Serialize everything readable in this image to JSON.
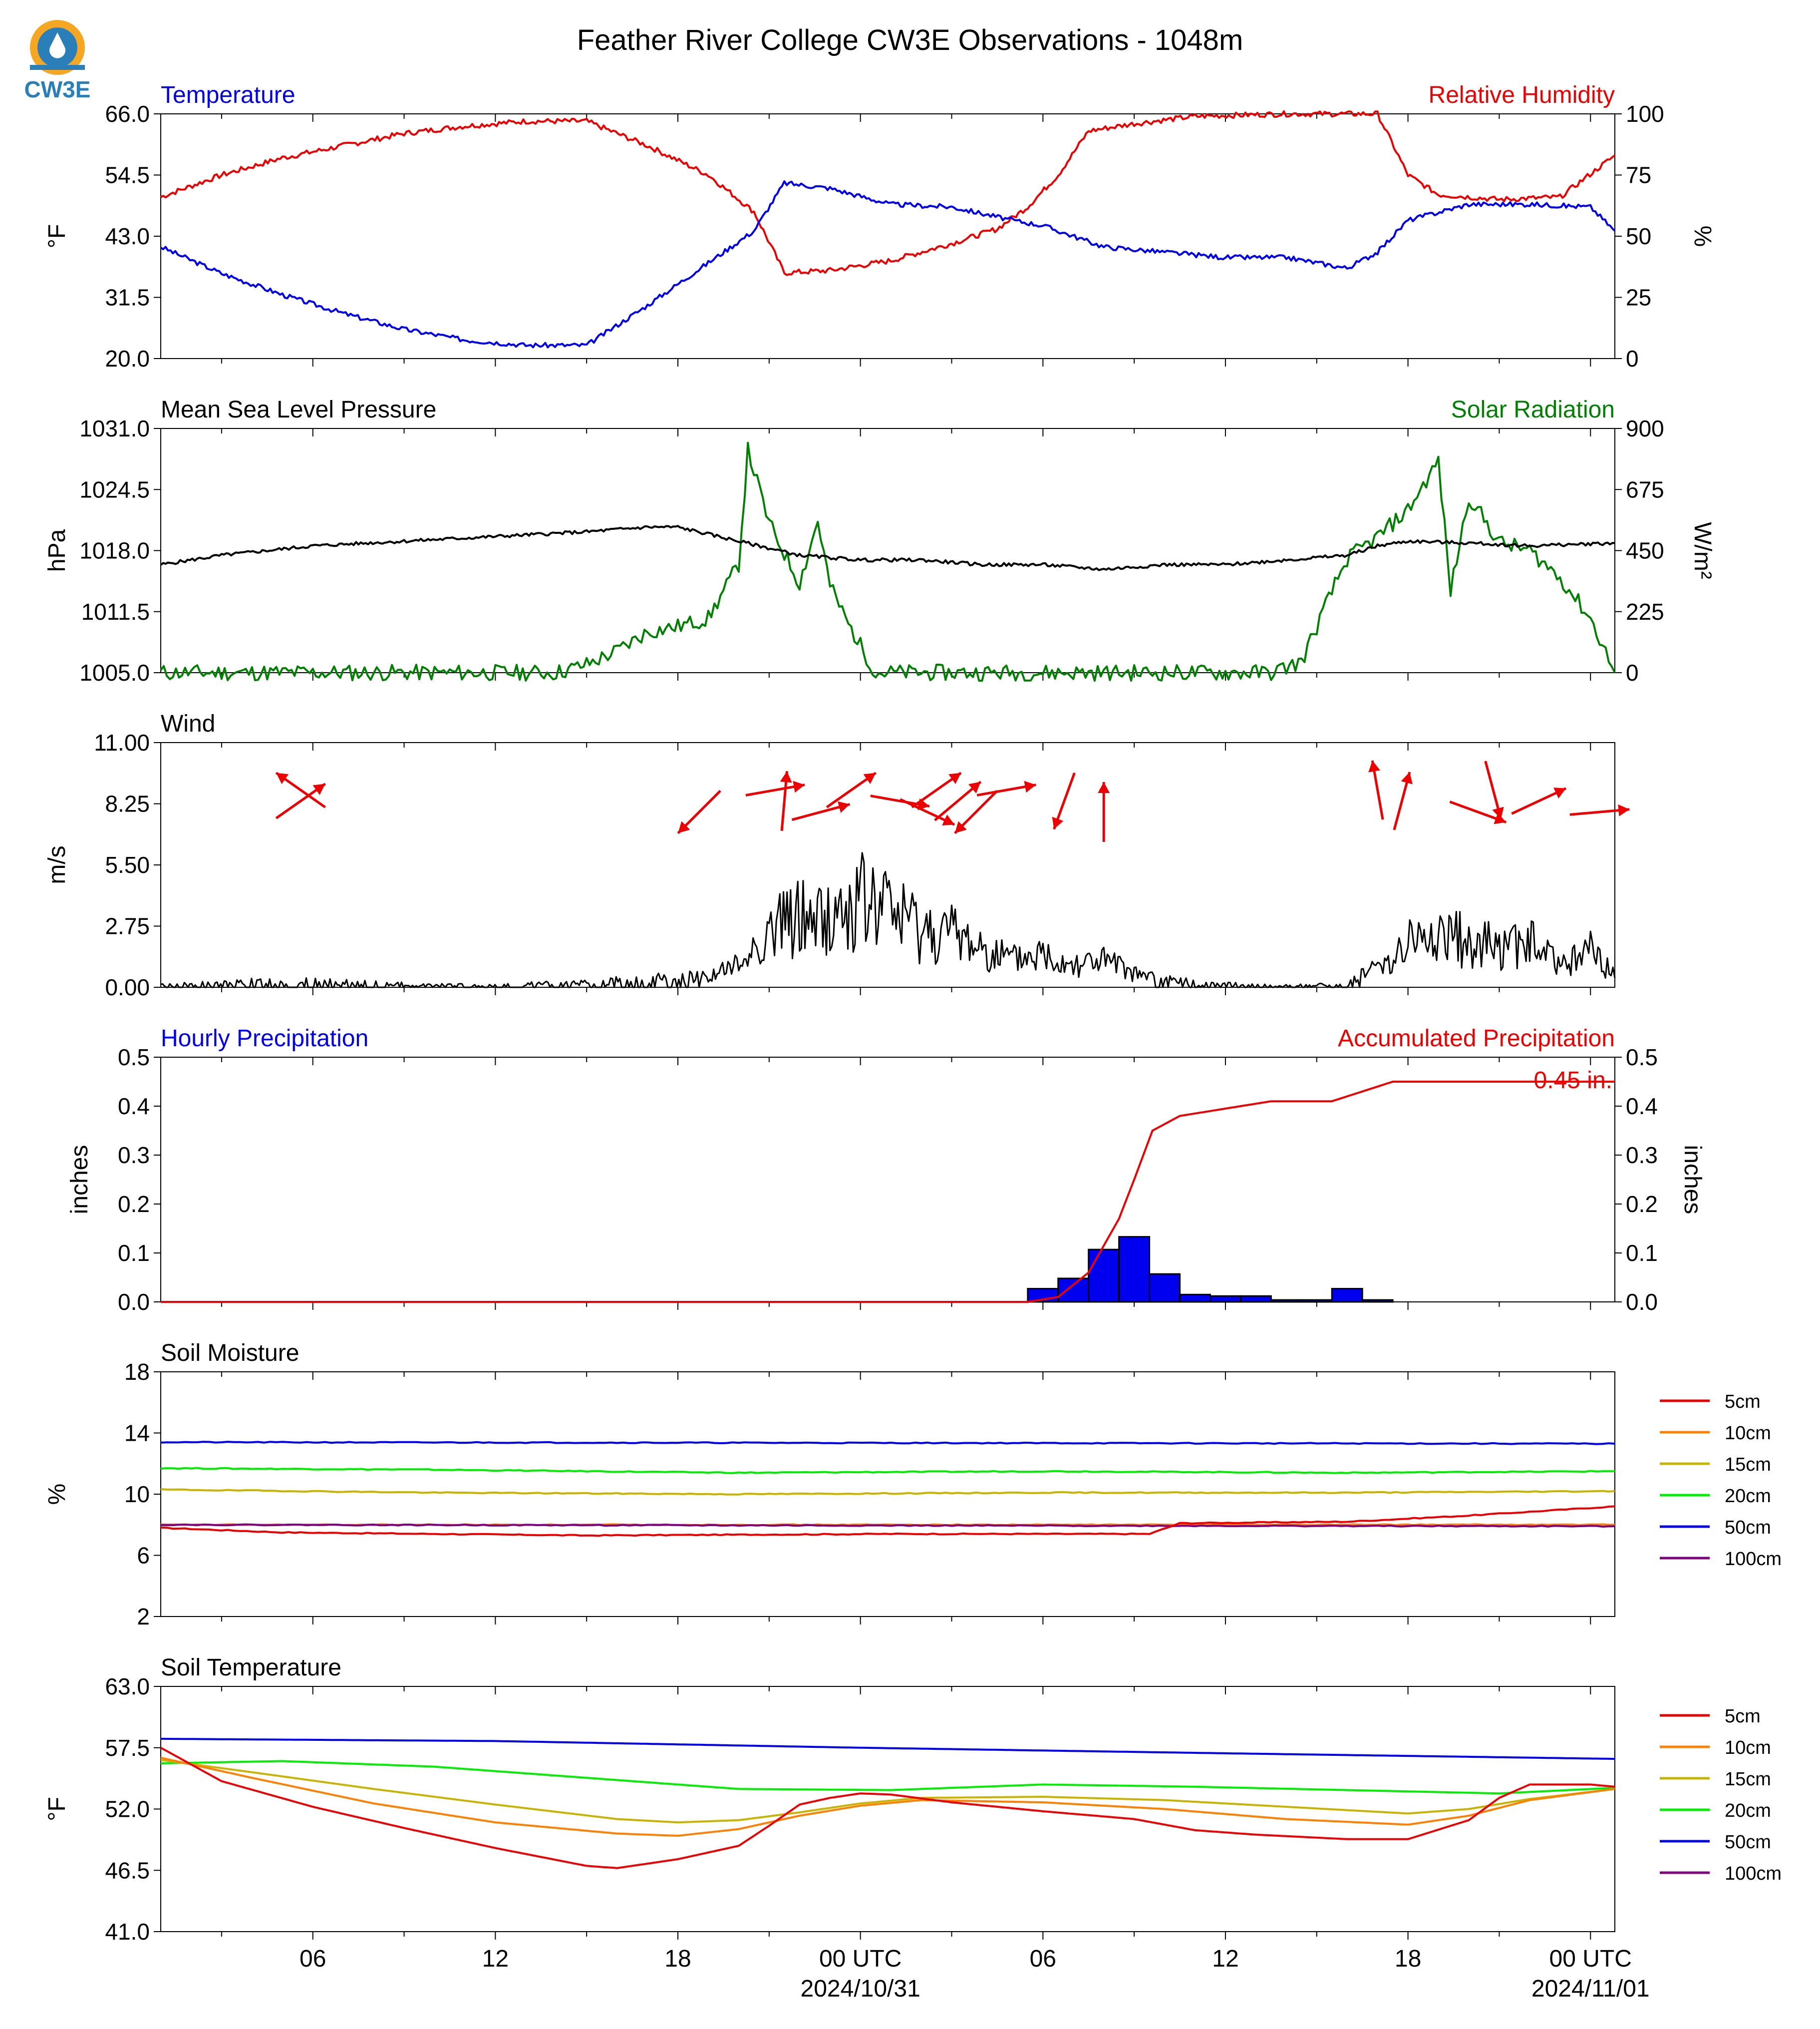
{
  "figure": {
    "title": "Feather River College CW3E Observations - 1048m",
    "logo_text": "CW3E"
  },
  "time_axis": {
    "start_hour": 1,
    "end_hour": 48.8,
    "tick_labels": [
      {
        "hour": 6,
        "label": "06"
      },
      {
        "hour": 12,
        "label": "12"
      },
      {
        "hour": 18,
        "label": "18"
      },
      {
        "hour": 24,
        "label": "00 UTC",
        "sub": "2024/10/31"
      },
      {
        "hour": 30,
        "label": "06"
      },
      {
        "hour": 36,
        "label": "12"
      },
      {
        "hour": 42,
        "label": "18"
      },
      {
        "hour": 48,
        "label": "00 UTC",
        "sub": "2024/11/01"
      }
    ]
  },
  "colors": {
    "blue": "#0000ee",
    "red": "#ee0000",
    "green": "#008000",
    "black": "#000000",
    "orange": "#ff8000",
    "olive": "#c8b400",
    "lime": "#00ee00",
    "purple": "#800080"
  },
  "panels": {
    "temp_rh": {
      "title_left": "Temperature",
      "title_right": "Relative Humidity",
      "ylabel_left": "°F",
      "ylabel_right": "%",
      "left_ticks": [
        "66.0",
        "54.5",
        "43.0",
        "31.5",
        "20.0"
      ],
      "right_ticks": [
        "100",
        "75",
        "50",
        "25",
        "0"
      ]
    },
    "pressure_solar": {
      "title_left": "Mean Sea Level Pressure",
      "title_right": "Solar Radiation",
      "ylabel_left": "hPa",
      "ylabel_right": "W/m²",
      "left_ticks": [
        "1031.0",
        "1024.5",
        "1018.0",
        "1011.5",
        "1005.0"
      ],
      "right_ticks": [
        "900",
        "675",
        "450",
        "225",
        "0"
      ]
    },
    "wind": {
      "title_left": "Wind",
      "ylabel_left": "m/s",
      "left_ticks": [
        "11.00",
        "8.25",
        "5.50",
        "2.75",
        "0.00"
      ]
    },
    "precip": {
      "title_left": "Hourly Precipitation",
      "title_right": "Accumulated Precipitation",
      "ylabel_left": "inches",
      "ylabel_right": "inches",
      "left_ticks": [
        "0.5",
        "0.4",
        "0.3",
        "0.2",
        "0.1",
        "0.0"
      ],
      "right_ticks": [
        "0.5",
        "0.4",
        "0.3",
        "0.2",
        "0.1",
        "0.0"
      ],
      "total_label": "0.45 in."
    },
    "soil_moisture": {
      "title_left": "Soil Moisture",
      "ylabel_left": "%",
      "left_ticks": [
        "18",
        "14",
        "10",
        "6",
        "2"
      ],
      "legend": [
        "5cm",
        "10cm",
        "15cm",
        "20cm",
        "50cm",
        "100cm"
      ]
    },
    "soil_temp": {
      "title_left": "Soil Temperature",
      "ylabel_left": "°F",
      "left_ticks": [
        "63.0",
        "57.5",
        "52.0",
        "46.5",
        "41.0"
      ],
      "legend": [
        "5cm",
        "10cm",
        "15cm",
        "20cm",
        "50cm",
        "100cm"
      ]
    }
  },
  "chart_data": [
    {
      "type": "line",
      "title": "Temperature / Relative Humidity",
      "x_unit": "hours since 2024-10-30 00 UTC",
      "ylim_left": [
        20,
        66
      ],
      "ylim_right": [
        0,
        100
      ],
      "series": [
        {
          "name": "Temperature",
          "axis": "left",
          "x": [
            1,
            3,
            5,
            7,
            9,
            11,
            13,
            15,
            17,
            19,
            20.5,
            21.5,
            23,
            25,
            27,
            29,
            30,
            32,
            34,
            36,
            38,
            40,
            41,
            42,
            44,
            46,
            48,
            48.8
          ],
          "y": [
            41,
            36,
            32,
            28.5,
            25.5,
            23.5,
            22.5,
            22.5,
            30,
            38,
            44,
            53,
            52,
            49,
            48.5,
            46,
            45,
            41,
            40,
            39,
            39,
            37,
            40,
            46,
            49,
            49,
            48.5,
            44
          ]
        },
        {
          "name": "Relative Humidity",
          "axis": "right",
          "x": [
            1,
            3,
            5,
            7,
            9,
            11,
            13,
            15,
            17,
            19,
            20.5,
            21.5,
            23,
            25,
            27,
            28.5,
            29.5,
            30.5,
            31.5,
            33,
            35,
            38,
            41,
            42,
            43,
            45,
            47,
            48.8
          ],
          "y": [
            66,
            75,
            82,
            87,
            92,
            95,
            97,
            97,
            87,
            75,
            60,
            35,
            36,
            40,
            47,
            53,
            62,
            75,
            93,
            96,
            99,
            100,
            100,
            75,
            67,
            65,
            66,
            83
          ]
        }
      ]
    },
    {
      "type": "line",
      "title": "Mean Sea Level Pressure / Solar Radiation",
      "x_unit": "hours since 2024-10-30 00 UTC",
      "ylim_left": [
        1005,
        1031
      ],
      "ylim_right": [
        0,
        900
      ],
      "series": [
        {
          "name": "Mean Sea Level Pressure",
          "axis": "left",
          "x": [
            1,
            3,
            6,
            9,
            12,
            15,
            17,
            18,
            20,
            22,
            24,
            26,
            28,
            30,
            32,
            34,
            36,
            38,
            40,
            41,
            42,
            44,
            46,
            48.8
          ],
          "y": [
            1016.5,
            1017.5,
            1018.5,
            1019,
            1019.5,
            1020,
            1020.5,
            1020.5,
            1019,
            1017.5,
            1017,
            1017,
            1016.5,
            1016.5,
            1016,
            1016.5,
            1016.5,
            1017,
            1017.5,
            1018.5,
            1019,
            1018.8,
            1018.5,
            1018.8
          ]
        },
        {
          "name": "Solar Radiation",
          "axis": "right",
          "x": [
            1,
            14,
            15,
            16,
            17,
            18,
            19,
            20,
            20.3,
            21,
            22,
            22.6,
            23,
            23.6,
            24.5,
            37.5,
            38.5,
            39.5,
            40,
            41,
            42,
            43,
            43.4,
            44,
            45,
            46,
            47,
            48,
            48.8
          ],
          "y": [
            0,
            0,
            30,
            80,
            150,
            170,
            200,
            400,
            820,
            550,
            330,
            560,
            320,
            180,
            0,
            0,
            40,
            300,
            420,
            500,
            600,
            780,
            300,
            650,
            480,
            450,
            350,
            200,
            0
          ]
        }
      ]
    },
    {
      "type": "line",
      "title": "Wind",
      "x_unit": "hours since 2024-10-30 00 UTC",
      "ylim": [
        0,
        11
      ],
      "series": [
        {
          "name": "Wind speed",
          "x": [
            1,
            5,
            10,
            15,
            17,
            19,
            20,
            21,
            22,
            23,
            24,
            25,
            26,
            27,
            28,
            29,
            30,
            31,
            32,
            33,
            34,
            35,
            37,
            38,
            39,
            40,
            41,
            42,
            43,
            44,
            45,
            46,
            47,
            48,
            48.8
          ],
          "y": [
            0.1,
            0.3,
            0.1,
            0.2,
            0.4,
            0.5,
            1.0,
            2.5,
            3.2,
            3.0,
            3.8,
            3.5,
            2.6,
            2.4,
            1.8,
            1.2,
            1.5,
            1.1,
            1.2,
            0.6,
            0.4,
            0.2,
            0.1,
            0.1,
            0.1,
            0.2,
            0.9,
            2.0,
            2.2,
            2.1,
            1.8,
            2.0,
            1.0,
            1.6,
            0.5
          ]
        }
      ],
      "wind_arrows_dir_deg_to": [
        {
          "x": 5.6,
          "dir": 305
        },
        {
          "x": 5.6,
          "dir": 55
        },
        {
          "x": 18.7,
          "dir": 225
        },
        {
          "x": 21.2,
          "dir": 80
        },
        {
          "x": 21.5,
          "dir": 5
        },
        {
          "x": 22.7,
          "dir": 75
        },
        {
          "x": 23.7,
          "dir": 55
        },
        {
          "x": 25.3,
          "dir": 100
        },
        {
          "x": 26.2,
          "dir": 115
        },
        {
          "x": 26.5,
          "dir": 55
        },
        {
          "x": 27.2,
          "dir": 50
        },
        {
          "x": 27.8,
          "dir": 225
        },
        {
          "x": 28.8,
          "dir": 80
        },
        {
          "x": 30.7,
          "dir": 200
        },
        {
          "x": 32.0,
          "dir": 0
        },
        {
          "x": 41.0,
          "dir": 350
        },
        {
          "x": 41.8,
          "dir": 15
        },
        {
          "x": 44.3,
          "dir": 110
        },
        {
          "x": 44.8,
          "dir": 165
        },
        {
          "x": 46.3,
          "dir": 65
        },
        {
          "x": 48.3,
          "dir": 85
        }
      ]
    },
    {
      "type": "bar",
      "title": "Hourly / Accumulated Precipitation",
      "x_unit": "hours since 2024-10-30 00 UTC",
      "ylim": [
        0,
        0.5
      ],
      "series": [
        {
          "name": "Hourly Precipitation",
          "x": [
            30,
            31,
            32,
            33,
            34,
            35,
            36,
            37,
            38,
            39,
            40,
            41
          ],
          "y": [
            0.027,
            0.048,
            0.107,
            0.133,
            0.057,
            0.015,
            0.012,
            0.012,
            0.004,
            0.004,
            0.027,
            0.004
          ]
        },
        {
          "name": "Accumulated Precipitation",
          "x": [
            1,
            29.5,
            30.5,
            31.5,
            32.5,
            33,
            33.6,
            34.5,
            35.5,
            36.5,
            37.5,
            38.5,
            39.5,
            40.5,
            41.5,
            48.8
          ],
          "y": [
            0,
            0,
            0.01,
            0.06,
            0.17,
            0.25,
            0.35,
            0.38,
            0.39,
            0.4,
            0.41,
            0.41,
            0.41,
            0.43,
            0.45,
            0.45
          ]
        }
      ]
    },
    {
      "type": "line",
      "title": "Soil Moisture",
      "x_unit": "hours since 2024-10-30 00 UTC",
      "ylim": [
        2,
        18
      ],
      "series": [
        {
          "name": "5cm",
          "x": [
            1,
            5,
            15,
            25,
            33.5,
            34.5,
            40,
            44,
            48.8
          ],
          "y": [
            7.8,
            7.5,
            7.3,
            7.4,
            7.4,
            8.1,
            8.2,
            8.6,
            9.2
          ]
        },
        {
          "name": "10cm",
          "x": [
            1,
            48.8
          ],
          "y": [
            8.0,
            8.0
          ]
        },
        {
          "name": "15cm",
          "x": [
            1,
            10,
            20,
            30,
            40,
            48.8
          ],
          "y": [
            10.3,
            10.1,
            10.0,
            10.1,
            10.1,
            10.2
          ]
        },
        {
          "name": "20cm",
          "x": [
            1,
            10,
            20,
            30,
            40,
            48.8
          ],
          "y": [
            11.7,
            11.6,
            11.4,
            11.5,
            11.4,
            11.5
          ]
        },
        {
          "name": "50cm",
          "x": [
            1,
            48.8
          ],
          "y": [
            13.4,
            13.3
          ]
        },
        {
          "name": "100cm",
          "x": [
            1,
            48.8
          ],
          "y": [
            8.0,
            7.9
          ]
        }
      ]
    },
    {
      "type": "line",
      "title": "Soil Temperature",
      "x_unit": "hours since 2024-10-30 00 UTC",
      "ylim": [
        41,
        63
      ],
      "series": [
        {
          "name": "5cm",
          "x": [
            1,
            3,
            6,
            9,
            12,
            15,
            16,
            18,
            20,
            21,
            22,
            23,
            24,
            25,
            27,
            30,
            33,
            35,
            37,
            40,
            42,
            44,
            45,
            46,
            48,
            48.8
          ],
          "y": [
            57.5,
            54.5,
            52.2,
            50.3,
            48.5,
            46.9,
            46.7,
            47.5,
            48.7,
            50.5,
            52.4,
            53.0,
            53.4,
            53.3,
            52.6,
            51.8,
            51.1,
            50.1,
            49.7,
            49.3,
            49.3,
            51,
            53,
            54.2,
            54.2,
            54
          ]
        },
        {
          "name": "10cm",
          "x": [
            1,
            4,
            8,
            12,
            16,
            18,
            20,
            22,
            24,
            26,
            30,
            34,
            38,
            42,
            44,
            46,
            48.8
          ],
          "y": [
            56.6,
            54.8,
            52.5,
            50.8,
            49.8,
            49.6,
            50.2,
            51.4,
            52.3,
            52.8,
            52.6,
            52.0,
            51.1,
            50.6,
            51.4,
            52.8,
            53.8
          ]
        },
        {
          "name": "15cm",
          "x": [
            1,
            4,
            8,
            12,
            16,
            18,
            20,
            22,
            24,
            26,
            30,
            34,
            38,
            42,
            44,
            46,
            48.8
          ],
          "y": [
            56.4,
            55.3,
            53.8,
            52.4,
            51.1,
            50.8,
            51.0,
            51.7,
            52.5,
            53.0,
            53.1,
            52.8,
            52.2,
            51.6,
            52.0,
            52.9,
            53.8
          ]
        },
        {
          "name": "20cm",
          "x": [
            1,
            5,
            10,
            15,
            20,
            25,
            30,
            35,
            40,
            45,
            48.8
          ],
          "y": [
            56.1,
            56.3,
            55.8,
            54.8,
            53.8,
            53.7,
            54.2,
            54.0,
            53.7,
            53.4,
            53.9
          ]
        },
        {
          "name": "50cm",
          "x": [
            1,
            12,
            24,
            36,
            48.8
          ],
          "y": [
            58.3,
            58.1,
            57.5,
            57.0,
            56.5
          ]
        }
      ]
    }
  ]
}
